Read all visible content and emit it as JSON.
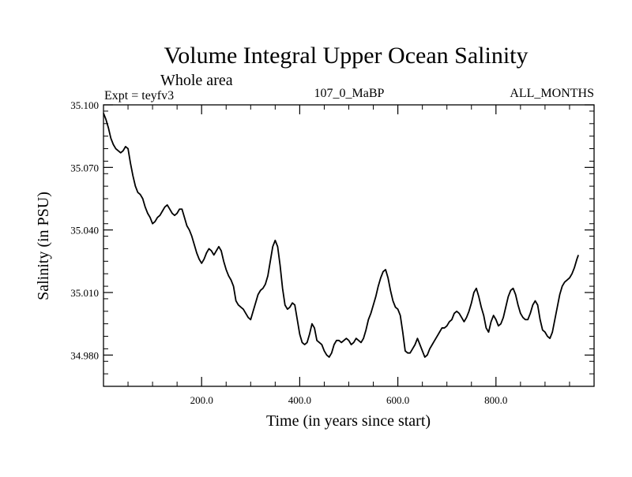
{
  "chart_data": {
    "type": "line",
    "title": "Volume Integral Upper Ocean Salinity",
    "subtitle": "Whole area",
    "left_string": "Expt = teyfv3",
    "center_string": "107_0_MaBP",
    "right_string": "ALL_MONTHS",
    "xlabel": "Time (in years since start)",
    "ylabel": "Salinity (in PSU)",
    "xlim": [
      0,
      1000
    ],
    "ylim": [
      34.965,
      35.1
    ],
    "x_ticks": [
      {
        "value": 200,
        "label": "200.0"
      },
      {
        "value": 400,
        "label": "400.0"
      },
      {
        "value": 600,
        "label": "600.0"
      },
      {
        "value": 800,
        "label": "800.0"
      }
    ],
    "y_ticks": [
      {
        "value": 35.1,
        "label": "35.100"
      },
      {
        "value": 35.07,
        "label": "35.070"
      },
      {
        "value": 35.04,
        "label": "35.040"
      },
      {
        "value": 35.01,
        "label": "35.010"
      },
      {
        "value": 34.98,
        "label": "34.980"
      }
    ],
    "x_minor_step": 50,
    "y_minor_step": 0.006,
    "grid": false,
    "series": [
      {
        "name": "salinity",
        "color": "#000000",
        "points": [
          [
            0,
            35.096
          ],
          [
            5,
            35.093
          ],
          [
            10,
            35.089
          ],
          [
            15,
            35.084
          ],
          [
            20,
            35.081
          ],
          [
            25,
            35.079
          ],
          [
            30,
            35.078
          ],
          [
            35,
            35.077
          ],
          [
            40,
            35.078
          ],
          [
            45,
            35.08
          ],
          [
            50,
            35.079
          ],
          [
            55,
            35.072
          ],
          [
            60,
            35.066
          ],
          [
            65,
            35.061
          ],
          [
            70,
            35.058
          ],
          [
            75,
            35.057
          ],
          [
            80,
            35.055
          ],
          [
            85,
            35.051
          ],
          [
            90,
            35.048
          ],
          [
            95,
            35.046
          ],
          [
            100,
            35.043
          ],
          [
            105,
            35.044
          ],
          [
            110,
            35.046
          ],
          [
            115,
            35.047
          ],
          [
            120,
            35.049
          ],
          [
            125,
            35.051
          ],
          [
            130,
            35.052
          ],
          [
            135,
            35.05
          ],
          [
            140,
            35.048
          ],
          [
            145,
            35.047
          ],
          [
            150,
            35.048
          ],
          [
            155,
            35.05
          ],
          [
            160,
            35.05
          ],
          [
            165,
            35.046
          ],
          [
            170,
            35.042
          ],
          [
            175,
            35.04
          ],
          [
            180,
            35.037
          ],
          [
            185,
            35.033
          ],
          [
            190,
            35.029
          ],
          [
            195,
            35.026
          ],
          [
            200,
            35.024
          ],
          [
            205,
            35.026
          ],
          [
            210,
            35.029
          ],
          [
            215,
            35.031
          ],
          [
            220,
            35.03
          ],
          [
            225,
            35.028
          ],
          [
            230,
            35.03
          ],
          [
            235,
            35.032
          ],
          [
            240,
            35.03
          ],
          [
            245,
            35.025
          ],
          [
            250,
            35.021
          ],
          [
            255,
            35.018
          ],
          [
            260,
            35.016
          ],
          [
            265,
            35.013
          ],
          [
            270,
            35.006
          ],
          [
            275,
            35.004
          ],
          [
            280,
            35.003
          ],
          [
            285,
            35.002
          ],
          [
            290,
            35.0
          ],
          [
            295,
            34.998
          ],
          [
            300,
            34.997
          ],
          [
            305,
            35.001
          ],
          [
            310,
            35.005
          ],
          [
            315,
            35.009
          ],
          [
            320,
            35.011
          ],
          [
            325,
            35.012
          ],
          [
            330,
            35.014
          ],
          [
            335,
            35.018
          ],
          [
            340,
            35.025
          ],
          [
            345,
            35.032
          ],
          [
            350,
            35.035
          ],
          [
            355,
            35.032
          ],
          [
            360,
            35.023
          ],
          [
            365,
            35.012
          ],
          [
            370,
            35.004
          ],
          [
            375,
            35.002
          ],
          [
            380,
            35.003
          ],
          [
            385,
            35.005
          ],
          [
            390,
            35.004
          ],
          [
            395,
            34.997
          ],
          [
            400,
            34.99
          ],
          [
            405,
            34.986
          ],
          [
            410,
            34.985
          ],
          [
            415,
            34.986
          ],
          [
            420,
            34.99
          ],
          [
            425,
            34.995
          ],
          [
            430,
            34.993
          ],
          [
            435,
            34.987
          ],
          [
            440,
            34.986
          ],
          [
            445,
            34.985
          ],
          [
            450,
            34.982
          ],
          [
            455,
            34.98
          ],
          [
            460,
            34.979
          ],
          [
            465,
            34.981
          ],
          [
            470,
            34.985
          ],
          [
            475,
            34.987
          ],
          [
            480,
            34.987
          ],
          [
            485,
            34.986
          ],
          [
            490,
            34.987
          ],
          [
            495,
            34.988
          ],
          [
            500,
            34.987
          ],
          [
            505,
            34.985
          ],
          [
            510,
            34.986
          ],
          [
            515,
            34.988
          ],
          [
            520,
            34.987
          ],
          [
            525,
            34.986
          ],
          [
            530,
            34.988
          ],
          [
            535,
            34.992
          ],
          [
            540,
            34.997
          ],
          [
            545,
            35.0
          ],
          [
            550,
            35.004
          ],
          [
            555,
            35.008
          ],
          [
            560,
            35.013
          ],
          [
            565,
            35.017
          ],
          [
            570,
            35.02
          ],
          [
            575,
            35.021
          ],
          [
            580,
            35.017
          ],
          [
            585,
            35.011
          ],
          [
            590,
            35.006
          ],
          [
            595,
            35.003
          ],
          [
            600,
            35.002
          ],
          [
            605,
            34.999
          ],
          [
            610,
            34.991
          ],
          [
            615,
            34.982
          ],
          [
            620,
            34.981
          ],
          [
            625,
            34.981
          ],
          [
            630,
            34.983
          ],
          [
            635,
            34.985
          ],
          [
            640,
            34.988
          ],
          [
            645,
            34.985
          ],
          [
            650,
            34.982
          ],
          [
            655,
            34.979
          ],
          [
            660,
            34.98
          ],
          [
            665,
            34.983
          ],
          [
            670,
            34.985
          ],
          [
            675,
            34.987
          ],
          [
            680,
            34.989
          ],
          [
            685,
            34.991
          ],
          [
            690,
            34.993
          ],
          [
            695,
            34.993
          ],
          [
            700,
            34.994
          ],
          [
            705,
            34.996
          ],
          [
            710,
            34.997
          ],
          [
            715,
            35.0
          ],
          [
            720,
            35.001
          ],
          [
            725,
            35.0
          ],
          [
            730,
            34.998
          ],
          [
            735,
            34.996
          ],
          [
            740,
            34.998
          ],
          [
            745,
            35.001
          ],
          [
            750,
            35.005
          ],
          [
            755,
            35.01
          ],
          [
            760,
            35.012
          ],
          [
            765,
            35.008
          ],
          [
            770,
            35.003
          ],
          [
            775,
            34.999
          ],
          [
            780,
            34.993
          ],
          [
            785,
            34.991
          ],
          [
            790,
            34.996
          ],
          [
            795,
            34.999
          ],
          [
            800,
            34.997
          ],
          [
            805,
            34.994
          ],
          [
            810,
            34.995
          ],
          [
            815,
            34.998
          ],
          [
            820,
            35.003
          ],
          [
            825,
            35.008
          ],
          [
            830,
            35.011
          ],
          [
            835,
            35.012
          ],
          [
            840,
            35.009
          ],
          [
            845,
            35.004
          ],
          [
            850,
            35.0
          ],
          [
            855,
            34.998
          ],
          [
            860,
            34.997
          ],
          [
            865,
            34.997
          ],
          [
            870,
            35.0
          ],
          [
            875,
            35.004
          ],
          [
            880,
            35.006
          ],
          [
            885,
            35.004
          ],
          [
            890,
            34.997
          ],
          [
            895,
            34.992
          ],
          [
            900,
            34.991
          ],
          [
            905,
            34.989
          ],
          [
            910,
            34.988
          ],
          [
            915,
            34.991
          ],
          [
            920,
            34.997
          ],
          [
            925,
            35.003
          ],
          [
            930,
            35.009
          ],
          [
            935,
            35.013
          ],
          [
            940,
            35.015
          ],
          [
            945,
            35.016
          ],
          [
            950,
            35.017
          ],
          [
            955,
            35.019
          ],
          [
            960,
            35.022
          ],
          [
            965,
            35.026
          ],
          [
            968,
            35.028
          ]
        ]
      }
    ]
  }
}
